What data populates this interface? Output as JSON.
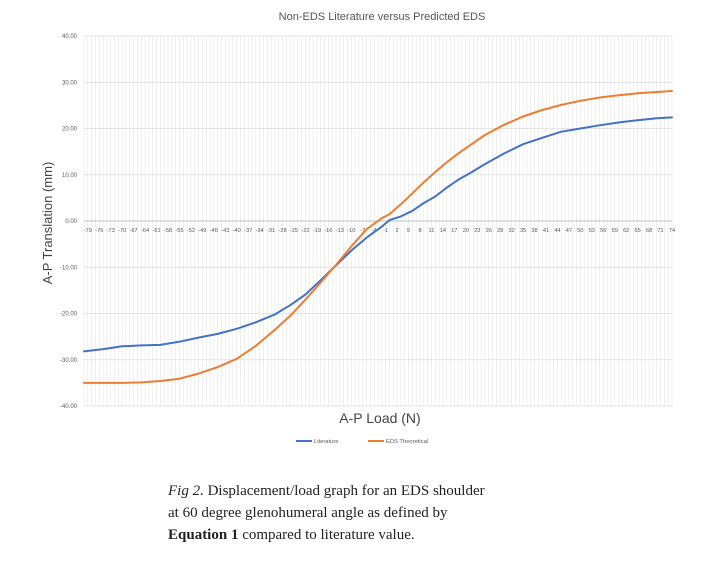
{
  "chart_data": {
    "type": "line",
    "title": "Non-EDS Literature versus Predicted EDS",
    "xlabel": "A-P Load (N)",
    "ylabel": "A-P Translation (mm)",
    "ylim": [
      -40,
      40
    ],
    "yticks": [
      "40.00",
      "30.00",
      "20.00",
      "10.00",
      "0.00",
      "-10.00",
      "-20.00",
      "-30.00",
      "-40.00"
    ],
    "xlim": [
      -80,
      74
    ],
    "xtick_labels": [
      -79,
      -76,
      -73,
      -70,
      -67,
      -64,
      -61,
      -58,
      -55,
      -52,
      -49,
      -46,
      -43,
      -40,
      -37,
      -34,
      -31,
      -28,
      -25,
      -22,
      -19,
      -16,
      -13,
      -10,
      -7,
      -4,
      -1,
      2,
      5,
      8,
      11,
      14,
      17,
      20,
      23,
      26,
      29,
      32,
      35,
      38,
      41,
      44,
      47,
      50,
      53,
      56,
      59,
      62,
      65,
      68,
      71,
      74
    ],
    "grid": true,
    "legend_position": "bottom",
    "series": [
      {
        "name": "Literature",
        "color": "#4472c4",
        "x": [
          -80,
          -75,
          -70,
          -65,
          -60,
          -55,
          -50,
          -45,
          -40,
          -35,
          -30,
          -26,
          -22,
          -18,
          -14,
          -10,
          -6,
          -2,
          0,
          3,
          6,
          9,
          12,
          15,
          18,
          21,
          25,
          30,
          35,
          40,
          45,
          50,
          55,
          60,
          65,
          70,
          74
        ],
        "y": [
          -28.2,
          -27.7,
          -27.1,
          -26.9,
          -26.8,
          -26.1,
          -25.2,
          -24.4,
          -23.3,
          -21.9,
          -20.2,
          -18.2,
          -15.9,
          -12.8,
          -9.6,
          -6.4,
          -3.6,
          -1.2,
          0.2,
          1.0,
          2.2,
          3.9,
          5.3,
          7.2,
          8.9,
          10.3,
          12.3,
          14.6,
          16.6,
          18.0,
          19.3,
          20.0,
          20.7,
          21.3,
          21.8,
          22.2,
          22.4
        ]
      },
      {
        "name": "EDS Theoretical",
        "color": "#ed7d31",
        "x": [
          -80,
          -75,
          -70,
          -65,
          -60,
          -55,
          -50,
          -45,
          -40,
          -35,
          -30,
          -26,
          -22,
          -18,
          -14,
          -10,
          -6,
          -2,
          0,
          3,
          6,
          9,
          12,
          15,
          18,
          21,
          25,
          30,
          35,
          40,
          45,
          50,
          55,
          60,
          65,
          70,
          74
        ],
        "y": [
          -35.0,
          -35.0,
          -35.0,
          -34.9,
          -34.6,
          -34.1,
          -33.0,
          -31.6,
          -29.8,
          -27.0,
          -23.5,
          -20.5,
          -17.0,
          -13.3,
          -9.5,
          -5.5,
          -1.8,
          0.6,
          1.5,
          3.6,
          6.0,
          8.4,
          10.6,
          12.7,
          14.6,
          16.3,
          18.6,
          20.8,
          22.6,
          24.0,
          25.1,
          26.0,
          26.7,
          27.2,
          27.6,
          27.9,
          28.1
        ]
      }
    ]
  },
  "caption": {
    "fig_label": "Fig 2.",
    "text_1": " Displacement/load graph for an EDS shoulder at 60 degree glenohumeral angle as defined by ",
    "equation": "Equation 1",
    "text_2": " compared to literature value."
  }
}
